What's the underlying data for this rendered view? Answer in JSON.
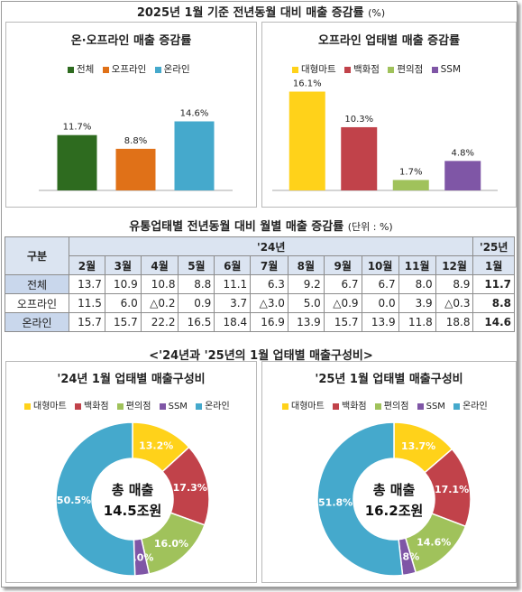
{
  "main_title": "2025년 1월 기준 전년동월 대비 매출 증감률",
  "main_title_unit": "(%)",
  "colors": {
    "total": "#2e6b1f",
    "offline": "#e07118",
    "online": "#45a9cc",
    "mart": "#ffd21a",
    "dept": "#c1424a",
    "conv": "#a0c25b",
    "ssm": "#7f56a6"
  },
  "chart_data": [
    {
      "type": "bar",
      "title": "온·오프라인 매출 증감률",
      "categories": [
        "전체",
        "오프라인",
        "온라인"
      ],
      "values": [
        11.7,
        8.8,
        14.6
      ],
      "labels": [
        "11.7%",
        "8.8%",
        "14.6%"
      ],
      "ylim": [
        0,
        25
      ]
    },
    {
      "type": "bar",
      "title": "오프라인 업태별 매출 증감률",
      "categories": [
        "대형마트",
        "백화점",
        "편의점",
        "SSM"
      ],
      "values": [
        16.1,
        10.3,
        1.7,
        4.8
      ],
      "labels": [
        "16.1%",
        "10.3%",
        "1.7%",
        "4.8%"
      ],
      "ylim": [
        0,
        20
      ]
    },
    {
      "type": "table",
      "title": "유통업태별 전년동월 대비 월별 매출 증감률",
      "title_unit": "(단위 : %)",
      "corner": "구분",
      "year_headers": [
        "'24년",
        "'25년"
      ],
      "months": [
        "2월",
        "3월",
        "4월",
        "5월",
        "6월",
        "7월",
        "8월",
        "9월",
        "10월",
        "11월",
        "12월",
        "1월"
      ],
      "rows": [
        {
          "label": "전체",
          "values": [
            "13.7",
            "10.9",
            "10.8",
            "8.8",
            "11.1",
            "6.3",
            "9.2",
            "6.7",
            "6.7",
            "8.0",
            "8.9",
            "11.7"
          ]
        },
        {
          "label": "오프라인",
          "values": [
            "11.5",
            "6.0",
            "△0.2",
            "0.9",
            "3.7",
            "△3.0",
            "5.0",
            "△0.9",
            "0.0",
            "3.9",
            "△0.3",
            "8.8"
          ]
        },
        {
          "label": "온라인",
          "values": [
            "15.7",
            "15.7",
            "22.2",
            "16.5",
            "18.4",
            "16.9",
            "13.9",
            "15.7",
            "13.9",
            "11.8",
            "18.8",
            "14.6"
          ]
        }
      ]
    },
    {
      "type": "pie",
      "title": "'24년 1월 업태별 매출구성비",
      "categories": [
        "대형마트",
        "백화점",
        "편의점",
        "SSM",
        "온라인"
      ],
      "values": [
        13.2,
        17.3,
        16.0,
        3.0,
        50.5
      ],
      "labels": [
        "13.2%",
        "17.3%",
        "16.0%",
        "3.0%",
        "50.5%"
      ],
      "center_line1": "총 매출",
      "center_line2": "14.5조원"
    },
    {
      "type": "pie",
      "title": "'25년 1월 업태별 매출구성비",
      "categories": [
        "대형마트",
        "백화점",
        "편의점",
        "SSM",
        "온라인"
      ],
      "values": [
        13.7,
        17.1,
        14.6,
        2.8,
        51.8
      ],
      "labels": [
        "13.7%",
        "17.1%",
        "14.6%",
        "2.8%",
        "51.8%"
      ],
      "center_line1": "총 매출",
      "center_line2": "16.2조원"
    }
  ],
  "pie_section_title": "<'24년과 '25년의 1월 업태별 매출구성비>"
}
